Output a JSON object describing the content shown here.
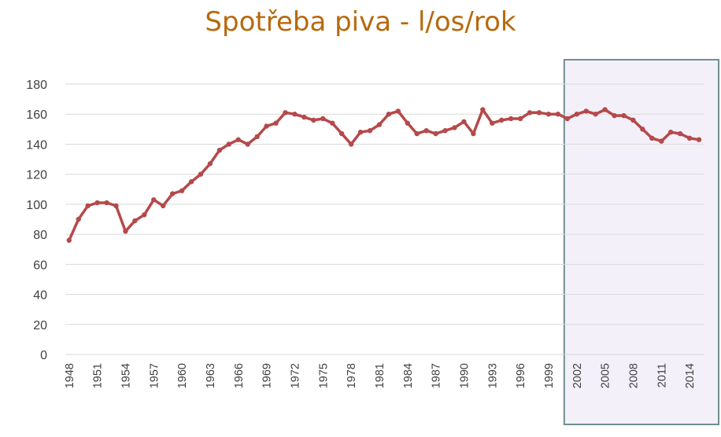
{
  "chart_data": {
    "type": "line",
    "title": "Spotřeba piva - l/os/rok",
    "xlabel": "",
    "ylabel": "",
    "ylim": [
      0,
      180
    ],
    "yticks": [
      0,
      20,
      40,
      60,
      80,
      100,
      120,
      140,
      160,
      180
    ],
    "xticks": [
      1948,
      1951,
      1954,
      1957,
      1960,
      1963,
      1966,
      1969,
      1972,
      1975,
      1978,
      1981,
      1984,
      1987,
      1990,
      1993,
      1996,
      1999,
      2002,
      2005,
      2008,
      2011,
      2014
    ],
    "grid": true,
    "highlight_range": [
      2001,
      2015
    ],
    "colors": {
      "line": "#b5494b",
      "title": "#b8690c",
      "highlight_fill": "#f3f0f9",
      "highlight_border": "#6f8f8d",
      "grid": "#d9d9d9"
    },
    "series": [
      {
        "name": "",
        "x": [
          1948,
          1949,
          1950,
          1951,
          1952,
          1953,
          1954,
          1955,
          1956,
          1957,
          1958,
          1959,
          1960,
          1961,
          1962,
          1963,
          1964,
          1965,
          1966,
          1967,
          1968,
          1969,
          1970,
          1971,
          1972,
          1973,
          1974,
          1975,
          1976,
          1977,
          1978,
          1979,
          1980,
          1981,
          1982,
          1983,
          1984,
          1985,
          1986,
          1987,
          1988,
          1989,
          1990,
          1991,
          1992,
          1993,
          1994,
          1995,
          1996,
          1997,
          1998,
          1999,
          2000,
          2001,
          2002,
          2003,
          2004,
          2005,
          2006,
          2007,
          2008,
          2009,
          2010,
          2011,
          2012,
          2013,
          2014,
          2015
        ],
        "values": [
          76,
          90,
          99,
          101,
          101,
          99,
          82,
          89,
          93,
          103,
          99,
          107,
          109,
          115,
          120,
          127,
          136,
          140,
          143,
          140,
          145,
          152,
          154,
          161,
          160,
          158,
          156,
          157,
          154,
          147,
          140,
          148,
          149,
          153,
          160,
          162,
          154,
          147,
          149,
          147,
          149,
          151,
          155,
          147,
          163,
          154,
          156,
          157,
          157,
          161,
          161,
          160,
          160,
          157,
          160,
          162,
          160,
          163,
          159,
          159,
          156,
          150,
          144,
          142,
          148,
          147,
          144,
          143
        ]
      }
    ]
  }
}
